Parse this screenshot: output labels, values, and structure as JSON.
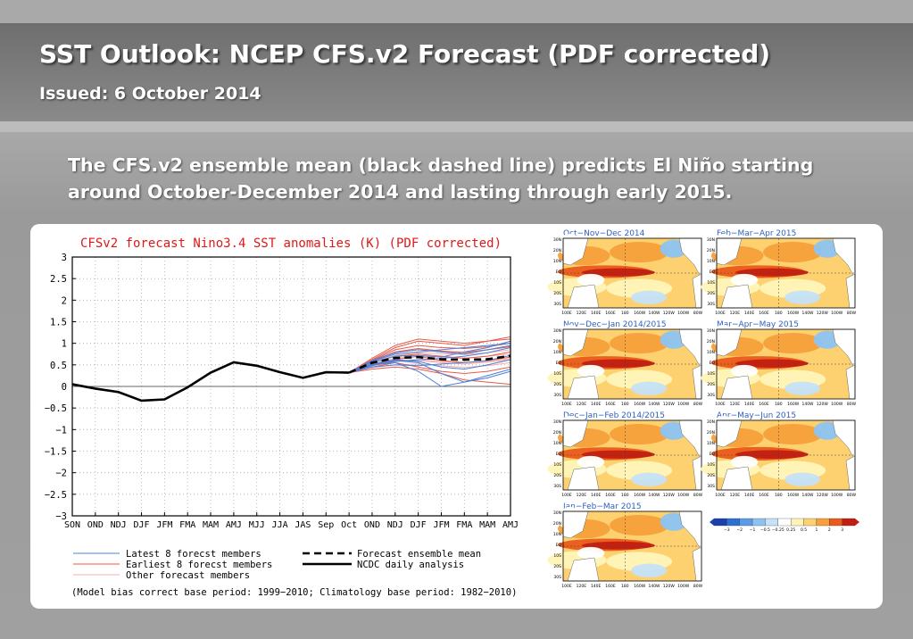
{
  "slide": {
    "title": "SST Outlook: NCEP CFS.v2 Forecast (PDF corrected)",
    "subtitle": "Issued: 6 October 2014",
    "summary": "The CFS.v2 ensemble mean (black dashed line) predicts El Niño starting around October-December 2014 and lasting through early 2015."
  },
  "chart_data": [
    {
      "type": "line",
      "title": "CFSv2 forecast Nino3.4 SST anomalies (K) (PDF corrected)",
      "categories": [
        "SON",
        "OND",
        "NDJ",
        "DJF",
        "JFM",
        "FMA",
        "MAM",
        "AMJ",
        "MJJ",
        "JJA",
        "JAS",
        "Sep",
        "Oct",
        "OND",
        "NDJ",
        "DJF",
        "JFM",
        "FMA",
        "MAM",
        "AMJ"
      ],
      "ylim": [
        -3,
        3
      ],
      "yticks": [
        "3",
        "2.5",
        "2",
        "1.5",
        "1",
        "0.5",
        "0",
        "−0.5",
        "−1",
        "−1.5",
        "−2",
        "−2.5",
        "−3"
      ],
      "grid": true,
      "series": [
        {
          "name": "NCDC daily analysis",
          "style": "solid-black",
          "values": [
            0.05,
            -0.05,
            -0.13,
            -0.33,
            -0.3,
            -0.02,
            0.32,
            0.56,
            0.48,
            0.33,
            0.2,
            0.33,
            0.32,
            null,
            null,
            null,
            null,
            null,
            null,
            null
          ]
        },
        {
          "name": "Forecast ensemble mean",
          "style": "dashed-black",
          "values": [
            null,
            null,
            null,
            null,
            null,
            null,
            null,
            null,
            null,
            null,
            null,
            null,
            0.32,
            0.55,
            0.66,
            0.68,
            0.63,
            0.62,
            0.63,
            0.71
          ]
        },
        {
          "name": "Latest 8 forecst members",
          "style": "blue",
          "members": [
            [
              0.32,
              0.48,
              0.6,
              0.55,
              0.3,
              0.1,
              0.2,
              0.35
            ],
            [
              0.32,
              0.52,
              0.62,
              0.58,
              0.45,
              0.4,
              0.5,
              0.62
            ],
            [
              0.32,
              0.55,
              0.7,
              0.72,
              0.68,
              0.8,
              0.9,
              1.05
            ],
            [
              0.32,
              0.5,
              0.55,
              0.35,
              0.0,
              0.1,
              0.25,
              0.4
            ],
            [
              0.32,
              0.58,
              0.75,
              0.8,
              0.85,
              0.9,
              0.95,
              1.0
            ],
            [
              0.32,
              0.45,
              0.5,
              0.48,
              0.52,
              0.55,
              0.6,
              0.72
            ],
            [
              0.32,
              0.6,
              0.78,
              0.85,
              0.8,
              0.75,
              0.85,
              0.95
            ],
            [
              0.32,
              0.5,
              0.58,
              0.62,
              0.65,
              0.7,
              0.78,
              0.9
            ]
          ]
        },
        {
          "name": "Earliest 8 forecst members",
          "style": "red",
          "members": [
            [
              0.32,
              0.62,
              0.9,
              1.05,
              1.0,
              0.95,
              1.05,
              1.15
            ],
            [
              0.32,
              0.6,
              0.85,
              0.95,
              0.9,
              0.88,
              0.92,
              1.0
            ],
            [
              0.32,
              0.4,
              0.45,
              0.4,
              0.3,
              0.15,
              0.1,
              0.05
            ],
            [
              0.32,
              0.55,
              0.7,
              0.75,
              0.7,
              0.65,
              0.7,
              0.8
            ],
            [
              0.32,
              0.5,
              0.62,
              0.7,
              0.6,
              0.55,
              0.6,
              0.68
            ],
            [
              0.32,
              0.65,
              0.95,
              1.1,
              1.05,
              1.0,
              1.05,
              1.1
            ],
            [
              0.32,
              0.45,
              0.55,
              0.45,
              0.35,
              0.3,
              0.35,
              0.45
            ],
            [
              0.32,
              0.58,
              0.8,
              0.88,
              0.82,
              0.78,
              0.85,
              0.92
            ]
          ]
        },
        {
          "name": "Other forecast members",
          "style": "pink",
          "members": [
            [
              0.32,
              0.52,
              0.65,
              0.7,
              0.68,
              0.66,
              0.7,
              0.75
            ],
            [
              0.32,
              0.48,
              0.58,
              0.6,
              0.55,
              0.52,
              0.56,
              0.62
            ],
            [
              0.32,
              0.56,
              0.72,
              0.78,
              0.76,
              0.74,
              0.78,
              0.85
            ],
            [
              0.32,
              0.44,
              0.5,
              0.52,
              0.48,
              0.44,
              0.48,
              0.55
            ],
            [
              0.32,
              0.6,
              0.8,
              0.85,
              0.82,
              0.8,
              0.85,
              0.92
            ],
            [
              0.32,
              0.5,
              0.6,
              0.62,
              0.58,
              0.55,
              0.58,
              0.65
            ]
          ]
        }
      ],
      "legend": {
        "entries": [
          {
            "label": "Latest 8 forecst members",
            "color": "#4d7fd9"
          },
          {
            "label": "Earliest 8 forecst members",
            "color": "#e85a4a"
          },
          {
            "label": "Other forecast members",
            "color": "#f3b0a6"
          },
          {
            "label": "Forecast ensemble mean",
            "color": "#000000"
          },
          {
            "label": "NCDC daily analysis",
            "color": "#000000"
          }
        ],
        "note": "(Model bias correct base period: 1999−2010; Climatology base period: 1982−2010)"
      }
    },
    {
      "type": "heatmap",
      "description_labels": true,
      "panels": [
        "Oct−Nov−Dec 2014",
        "Nov−Dec−Jan 2014/2015",
        "Dec−Jan−Feb 2014/2015",
        "Jan−Feb−Mar 2015",
        "Feb−Mar−Apr 2015",
        "Mar−Apr−May 2015",
        "Apr−May−Jun 2015"
      ],
      "lat_labels": [
        "30N",
        "20N",
        "10N",
        "EQ",
        "10S",
        "20S",
        "30S"
      ],
      "lon_labels": [
        "100E",
        "120E",
        "140E",
        "160E",
        "180",
        "160W",
        "140W",
        "120W",
        "100W",
        "80W"
      ],
      "colorbar": {
        "labels": [
          "−3",
          "−2",
          "−1",
          "−0.5",
          "−0.25",
          "0.25",
          "0.5",
          "1",
          "2",
          "3"
        ],
        "colors": [
          "#1a3fb0",
          "#2c6fd6",
          "#5a9be8",
          "#8cc3f2",
          "#c4e2f8",
          "#ffffff",
          "#fff4b8",
          "#fdd070",
          "#f7a03a",
          "#ea5a1a",
          "#c41e10"
        ]
      }
    }
  ]
}
